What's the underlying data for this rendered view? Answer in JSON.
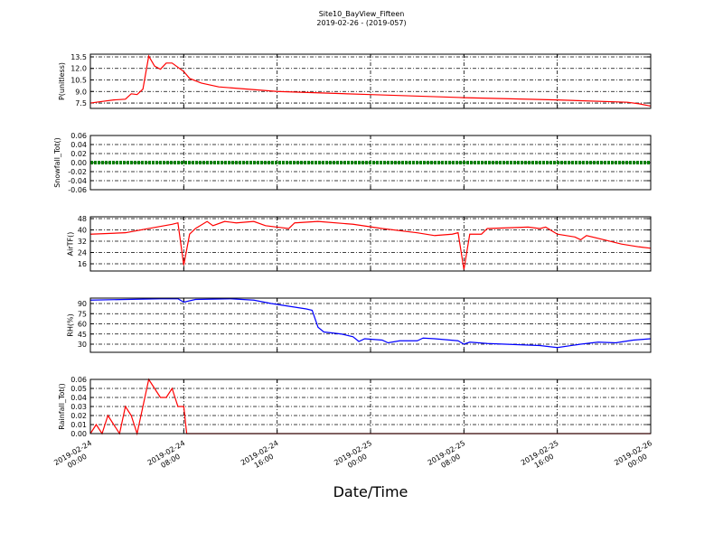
{
  "title": "Site10_BayView_Fifteen",
  "subtitle": "2019-02-26 - (2019-057)",
  "xaxis": {
    "label": "Date/Time",
    "xlim": [
      "2019-02-24 00:00",
      "2019-02-26 00:00"
    ],
    "xticks": [
      {
        "value": "2019-02-24 00:00",
        "label": "2019-02-24\n00:00"
      },
      {
        "value": "2019-02-24 08:00",
        "label": "2019-02-24\n08:00"
      },
      {
        "value": "2019-02-24 16:00",
        "label": "2019-02-24\n16:00"
      },
      {
        "value": "2019-02-25 00:00",
        "label": "2019-02-25\n00:00"
      },
      {
        "value": "2019-02-25 08:00",
        "label": "2019-02-25\n08:00"
      },
      {
        "value": "2019-02-25 16:00",
        "label": "2019-02-25\n16:00"
      },
      {
        "value": "2019-02-26 00:00",
        "label": "2019-02-26\n00:00"
      }
    ],
    "grid": true
  },
  "chart_data": [
    {
      "type": "line",
      "ylabel": "P(unitless)",
      "ylim": [
        6.8,
        13.85
      ],
      "yticks": [
        7.5,
        {
          "value": 9,
          "label": "9.0"
        },
        10.5,
        {
          "value": 12,
          "label": "12.0"
        },
        13.5
      ],
      "grid": true,
      "series": [
        {
          "name": "P",
          "color": "#ff0000",
          "x": [
            "2019-02-24 00:00",
            "2019-02-24 01:00",
            "2019-02-24 02:00",
            "2019-02-24 03:00",
            "2019-02-24 03:30",
            "2019-02-24 04:00",
            "2019-02-24 04:30",
            "2019-02-24 05:00",
            "2019-02-24 05:30",
            "2019-02-24 06:00",
            "2019-02-24 06:30",
            "2019-02-24 07:00",
            "2019-02-24 08:00",
            "2019-02-24 08:30",
            "2019-02-24 09:30",
            "2019-02-24 11:00",
            "2019-02-24 16:00",
            "2019-02-25 00:00",
            "2019-02-25 08:00",
            "2019-02-25 16:00",
            "2019-02-25 22:00",
            "2019-02-25 23:00",
            "2019-02-26 00:00"
          ],
          "values": [
            7.5,
            7.7,
            7.9,
            8.0,
            8.7,
            8.6,
            9.3,
            13.6,
            12.3,
            11.9,
            12.7,
            12.7,
            11.6,
            10.7,
            10.1,
            9.6,
            9.0,
            8.6,
            8.2,
            7.9,
            7.6,
            7.4,
            7.1
          ]
        }
      ]
    },
    {
      "type": "line",
      "ylabel": "Snowfall_Tot()",
      "ylim": [
        -0.06,
        0.06
      ],
      "yticks": [
        -0.06,
        -0.04,
        -0.02,
        {
          "value": 0,
          "label": "0.00"
        },
        0.02,
        0.04,
        0.06
      ],
      "grid": true,
      "markers": true,
      "series": [
        {
          "name": "Snowfall_Tot",
          "color": "#008000",
          "x": [
            "2019-02-24 00:00",
            "2019-02-24 04:00",
            "2019-02-24 08:00",
            "2019-02-24 12:00",
            "2019-02-24 16:00",
            "2019-02-24 20:00",
            "2019-02-25 00:00",
            "2019-02-25 04:00",
            "2019-02-25 08:00",
            "2019-02-25 12:00",
            "2019-02-25 16:00",
            "2019-02-25 20:00",
            "2019-02-26 00:00"
          ],
          "values": [
            0,
            0,
            0,
            0,
            0,
            0,
            0,
            0,
            0,
            0,
            0,
            0,
            0
          ]
        }
      ]
    },
    {
      "type": "line",
      "ylabel": "AirTF()",
      "ylim": [
        10.9,
        49.3
      ],
      "yticks": [
        16,
        24,
        32,
        40,
        48
      ],
      "grid": true,
      "series": [
        {
          "name": "AirTF",
          "color": "#ff0000",
          "x": [
            "2019-02-24 00:00",
            "2019-02-24 03:00",
            "2019-02-24 05:00",
            "2019-02-24 07:00",
            "2019-02-24 07:30",
            "2019-02-24 08:00",
            "2019-02-24 08:30",
            "2019-02-24 09:00",
            "2019-02-24 10:00",
            "2019-02-24 10:30",
            "2019-02-24 11:30",
            "2019-02-24 12:30",
            "2019-02-24 14:00",
            "2019-02-24 15:00",
            "2019-02-24 16:00",
            "2019-02-24 17:00",
            "2019-02-24 17:30",
            "2019-02-24 19:30",
            "2019-02-24 22:30",
            "2019-02-25 01:00",
            "2019-02-25 04:00",
            "2019-02-25 05:30",
            "2019-02-25 07:00",
            "2019-02-25 07:30",
            "2019-02-25 08:00",
            "2019-02-25 08:30",
            "2019-02-25 09:30",
            "2019-02-25 10:00",
            "2019-02-25 13:30",
            "2019-02-25 14:30",
            "2019-02-25 15:00",
            "2019-02-25 16:00",
            "2019-02-25 17:30",
            "2019-02-25 18:00",
            "2019-02-25 18:30",
            "2019-02-25 20:00",
            "2019-02-25 21:30",
            "2019-02-25 23:00",
            "2019-02-26 00:00"
          ],
          "values": [
            37,
            38,
            41,
            44,
            45,
            15,
            37,
            41,
            46,
            43,
            46,
            45,
            46,
            43,
            42,
            41,
            45,
            46,
            44,
            41,
            38,
            36,
            37,
            38,
            12,
            37,
            37,
            41,
            42,
            41,
            42,
            37,
            35,
            33,
            36,
            33,
            30,
            28,
            27
          ]
        }
      ]
    },
    {
      "type": "line",
      "ylabel": "RH(%)",
      "ylim": [
        18,
        98
      ],
      "yticks": [
        30,
        45,
        60,
        75,
        90
      ],
      "grid": true,
      "series": [
        {
          "name": "RH",
          "color": "#0000ff",
          "x": [
            "2019-02-24 00:00",
            "2019-02-24 06:00",
            "2019-02-24 07:30",
            "2019-02-24 08:00",
            "2019-02-24 09:00",
            "2019-02-24 12:00",
            "2019-02-24 14:00",
            "2019-02-24 15:30",
            "2019-02-24 17:00",
            "2019-02-24 18:30",
            "2019-02-24 19:00",
            "2019-02-24 19:30",
            "2019-02-24 20:00",
            "2019-02-24 21:30",
            "2019-02-24 22:30",
            "2019-02-24 23:00",
            "2019-02-24 23:30",
            "2019-02-25 01:00",
            "2019-02-25 01:30",
            "2019-02-25 02:30",
            "2019-02-25 04:00",
            "2019-02-25 04:30",
            "2019-02-25 05:30",
            "2019-02-25 07:30",
            "2019-02-25 08:00",
            "2019-02-25 08:30",
            "2019-02-25 10:00",
            "2019-02-25 11:30",
            "2019-02-25 14:30",
            "2019-02-25 16:00",
            "2019-02-25 18:00",
            "2019-02-25 19:30",
            "2019-02-25 21:00",
            "2019-02-25 22:30",
            "2019-02-26 00:00"
          ],
          "values": [
            95,
            97,
            97,
            92,
            96,
            97,
            95,
            90,
            86,
            82,
            80,
            55,
            48,
            45,
            41,
            34,
            38,
            36,
            32,
            35,
            35,
            39,
            38,
            35,
            30,
            33,
            31,
            30,
            28,
            25,
            30,
            33,
            32,
            36,
            38
          ]
        }
      ]
    },
    {
      "type": "line",
      "ylabel": "Rainfall_Tot()",
      "ylim": [
        0,
        0.06
      ],
      "yticks": [
        {
          "value": 0,
          "label": "0.00"
        },
        0.01,
        0.02,
        0.03,
        0.04,
        0.05,
        0.06
      ],
      "grid": true,
      "series": [
        {
          "name": "Rainfall_Tot",
          "color": "#ff0000",
          "x": [
            "2019-02-24 00:00",
            "2019-02-24 00:30",
            "2019-02-24 01:00",
            "2019-02-24 01:30",
            "2019-02-24 02:00",
            "2019-02-24 02:30",
            "2019-02-24 03:00",
            "2019-02-24 03:30",
            "2019-02-24 04:00",
            "2019-02-24 04:30",
            "2019-02-24 05:00",
            "2019-02-24 05:30",
            "2019-02-24 06:00",
            "2019-02-24 06:30",
            "2019-02-24 07:00",
            "2019-02-24 07:30",
            "2019-02-24 08:00",
            "2019-02-24 08:15",
            "2019-02-26 00:00"
          ],
          "values": [
            0,
            0.01,
            0,
            0.02,
            0.01,
            0,
            0.03,
            0.02,
            0,
            0.03,
            0.06,
            0.05,
            0.04,
            0.04,
            0.05,
            0.03,
            0.03,
            0,
            0
          ]
        }
      ]
    }
  ]
}
